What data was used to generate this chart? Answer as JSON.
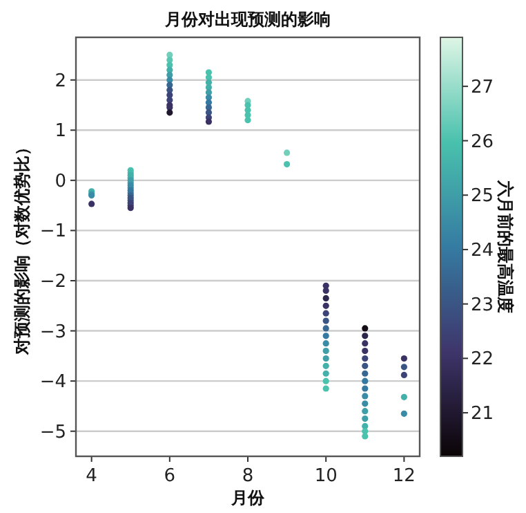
{
  "chart_data": {
    "type": "scatter",
    "title": "月份对出现预测的影响",
    "xlabel": "月份",
    "ylabel": "对预测的影响（对数优势比）",
    "clabel": "六月前的最高温度",
    "xlim": [
      3.6,
      12.4
    ],
    "xticks": [
      4,
      6,
      8,
      10,
      12
    ],
    "ylim": [
      -5.5,
      2.85
    ],
    "yticks": [
      -5,
      -4,
      -3,
      -2,
      -1,
      0,
      1,
      2
    ],
    "clim": [
      20.2,
      27.9
    ],
    "cticks": [
      21,
      22,
      23,
      24,
      25,
      26,
      27
    ],
    "grid": "y",
    "marker": "circle",
    "x": [
      4,
      4,
      4,
      4,
      5,
      5,
      5,
      5,
      5,
      5,
      5,
      5,
      5,
      5,
      5,
      5,
      5,
      5,
      5,
      5,
      6,
      6,
      6,
      6,
      6,
      6,
      6,
      6,
      6,
      6,
      6,
      6,
      6,
      7,
      7,
      7,
      7,
      7,
      7,
      7,
      7,
      7,
      7,
      7,
      8,
      8,
      8,
      8,
      8,
      9,
      9,
      10,
      10,
      10,
      10,
      10,
      10,
      10,
      10,
      10,
      10,
      10,
      10,
      10,
      10,
      10,
      11,
      11,
      11,
      11,
      11,
      11,
      11,
      11,
      11,
      11,
      11,
      11,
      11,
      11,
      11,
      11,
      12,
      12,
      12,
      12,
      12
    ],
    "values": [
      -0.22,
      -0.27,
      -0.3,
      -0.47,
      0.2,
      0.15,
      0.1,
      0.05,
      0,
      -0.05,
      -0.1,
      -0.15,
      -0.2,
      -0.25,
      -0.3,
      -0.35,
      -0.4,
      -0.45,
      -0.5,
      -0.55,
      2.5,
      2.4,
      2.3,
      2.2,
      2.1,
      2.0,
      1.9,
      1.8,
      1.7,
      1.6,
      1.5,
      1.45,
      1.35,
      2.15,
      2.05,
      1.95,
      1.85,
      1.75,
      1.65,
      1.55,
      1.45,
      1.35,
      1.25,
      1.17,
      1.58,
      1.5,
      1.4,
      1.3,
      1.2,
      0.55,
      0.32,
      -2.1,
      -2.2,
      -2.35,
      -2.5,
      -2.65,
      -2.8,
      -2.95,
      -3.1,
      -3.25,
      -3.4,
      -3.55,
      -3.7,
      -3.85,
      -4.0,
      -4.15,
      -2.95,
      -3.1,
      -3.25,
      -3.4,
      -3.55,
      -3.7,
      -3.85,
      -4.0,
      -4.15,
      -4.3,
      -4.45,
      -4.6,
      -4.75,
      -4.9,
      -5.0,
      -5.1,
      -3.55,
      -3.72,
      -3.88,
      -4.32,
      -4.65
    ],
    "cvalues": [
      25.5,
      25,
      24.5,
      22,
      26,
      25.8,
      25.5,
      25.5,
      25,
      25,
      24.5,
      24.5,
      24,
      24,
      23.5,
      23,
      23,
      22.5,
      22.5,
      22,
      26.5,
      26.2,
      26,
      25.5,
      25,
      24.5,
      23.5,
      23,
      22.5,
      22.5,
      22,
      22,
      21,
      26,
      26,
      25.5,
      25.5,
      25,
      24.5,
      24,
      23.5,
      23,
      22.5,
      22,
      26.5,
      26,
      26,
      26,
      26,
      26.5,
      26,
      22,
      22,
      21.5,
      22,
      22.5,
      23,
      23.5,
      24,
      24.5,
      25,
      25,
      25.5,
      25.5,
      26,
      26,
      20.5,
      21.5,
      22,
      22,
      22.5,
      23,
      23.5,
      24,
      24,
      24.5,
      24.5,
      25,
      25,
      25.5,
      26,
      26,
      22,
      23,
      22.5,
      25.5,
      24.5
    ]
  }
}
